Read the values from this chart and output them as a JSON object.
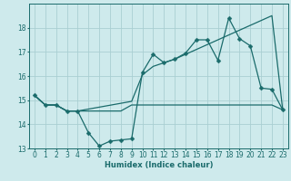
{
  "xlabel": "Humidex (Indice chaleur)",
  "background_color": "#ceeaec",
  "grid_color": "#aacfd2",
  "line_color": "#1a6b6b",
  "xlim": [
    -0.5,
    23.5
  ],
  "ylim": [
    13,
    19
  ],
  "yticks": [
    13,
    14,
    15,
    16,
    17,
    18
  ],
  "xticks": [
    0,
    1,
    2,
    3,
    4,
    5,
    6,
    7,
    8,
    9,
    10,
    11,
    12,
    13,
    14,
    15,
    16,
    17,
    18,
    19,
    20,
    21,
    22,
    23
  ],
  "series1_x": [
    0,
    1,
    2,
    3,
    4,
    5,
    6,
    7,
    8,
    9,
    10,
    11,
    12,
    13,
    14,
    15,
    16,
    17,
    18,
    19,
    20,
    21,
    22,
    23
  ],
  "series1_y": [
    15.2,
    14.8,
    14.8,
    14.55,
    14.55,
    13.65,
    13.1,
    13.3,
    13.35,
    13.4,
    16.15,
    16.9,
    16.55,
    16.7,
    16.95,
    17.5,
    17.5,
    16.65,
    18.4,
    17.55,
    17.25,
    15.5,
    15.45,
    14.6
  ],
  "series2_x": [
    0,
    1,
    2,
    3,
    4,
    9,
    10,
    11,
    12,
    13,
    14,
    15,
    16,
    17,
    18,
    19,
    20,
    21,
    22,
    23
  ],
  "series2_y": [
    15.2,
    14.8,
    14.8,
    14.55,
    14.55,
    14.95,
    16.05,
    16.4,
    16.55,
    16.7,
    16.9,
    17.1,
    17.3,
    17.5,
    17.7,
    17.9,
    18.1,
    18.3,
    18.5,
    14.6
  ],
  "series3_x": [
    0,
    1,
    2,
    3,
    4,
    5,
    6,
    7,
    8,
    9,
    10,
    11,
    12,
    13,
    14,
    15,
    16,
    17,
    18,
    19,
    20,
    21,
    22,
    23
  ],
  "series3_y": [
    15.2,
    14.8,
    14.8,
    14.55,
    14.55,
    14.55,
    14.55,
    14.55,
    14.55,
    14.8,
    14.8,
    14.8,
    14.8,
    14.8,
    14.8,
    14.8,
    14.8,
    14.8,
    14.8,
    14.8,
    14.8,
    14.8,
    14.8,
    14.6
  ],
  "xlabel_fontsize": 6,
  "tick_fontsize": 5.5,
  "linewidth": 0.9,
  "markersize": 2.5
}
